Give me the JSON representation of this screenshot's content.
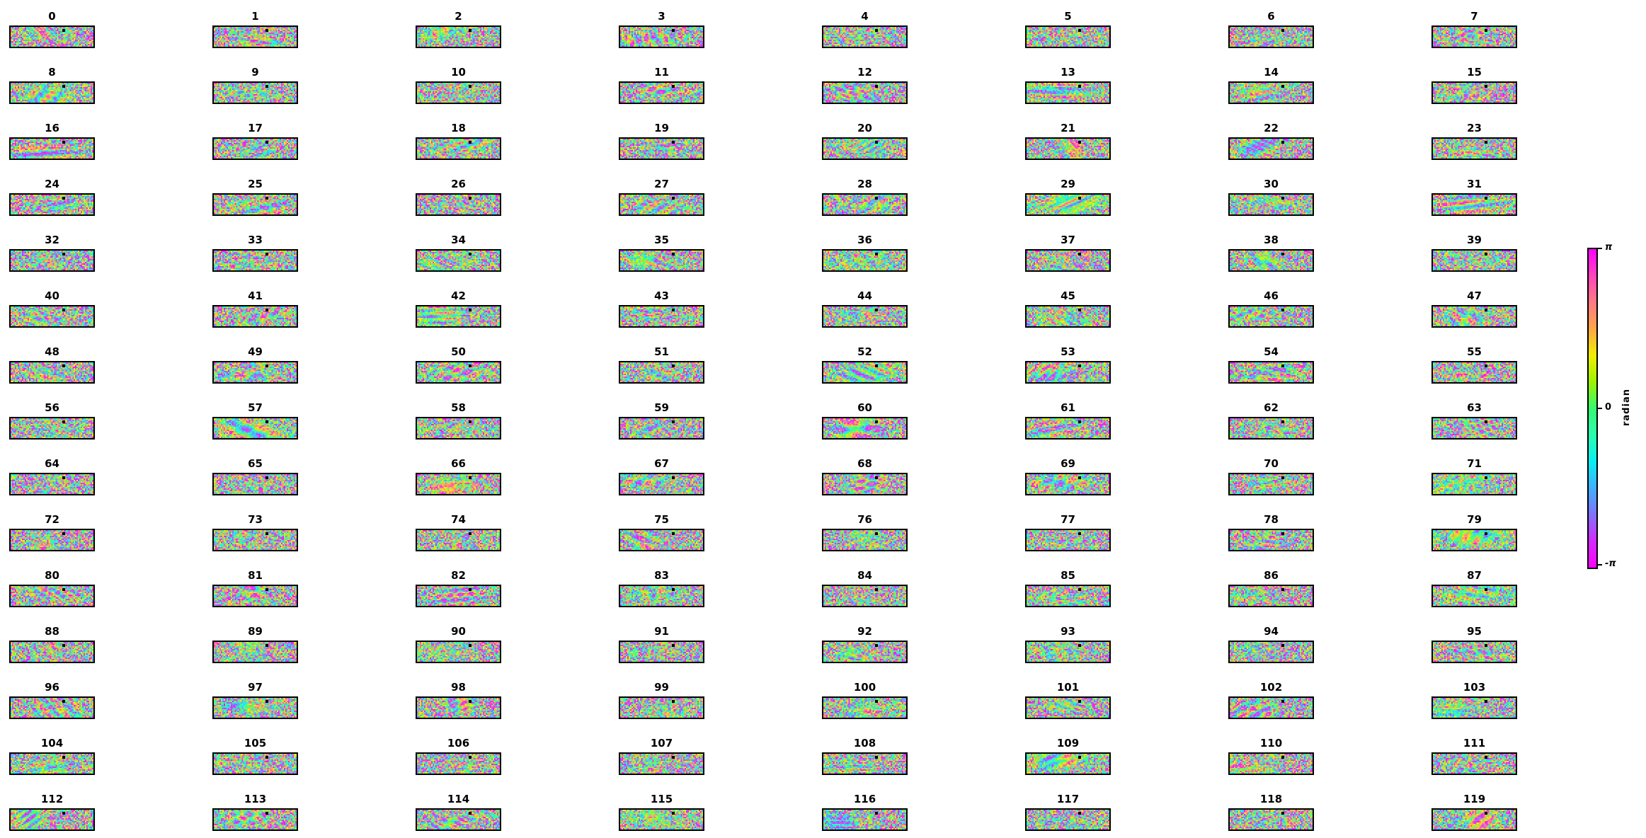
{
  "page": {
    "background": "#ffffff"
  },
  "figure": {
    "marker": {
      "color": "#000000",
      "rel_x": 0.62,
      "rel_y": 0.12
    },
    "colorbar": {
      "label": "radian",
      "ticks": [
        {
          "label": "π",
          "pos": 0.0
        },
        {
          "label": "0",
          "pos": 0.5
        },
        {
          "label": "-π",
          "pos": 1.0
        }
      ],
      "gradient_stops": [
        "#ff00ff",
        "#ff44bb",
        "#ff7a85",
        "#ffa647",
        "#f2ee00",
        "#9ef300",
        "#34fa70",
        "#2cfcaf",
        "#06f0f2",
        "#3fb0ff",
        "#8172fa",
        "#d32bff",
        "#ff00ff"
      ],
      "border_color": "#000000"
    }
  },
  "chart_data": {
    "type": "heatmap",
    "subtype": "grid of wrapped-phase (interferogram-like) noise images",
    "title": "",
    "layout": {
      "rows": 15,
      "cols": 8,
      "colorbar_position": "right",
      "grid": "off"
    },
    "panel_titles": [
      "0",
      "1",
      "2",
      "3",
      "4",
      "5",
      "6",
      "7",
      "8",
      "9",
      "10",
      "11",
      "12",
      "13",
      "14",
      "15",
      "16",
      "17",
      "18",
      "19",
      "20",
      "21",
      "22",
      "23",
      "24",
      "25",
      "26",
      "27",
      "28",
      "29",
      "30",
      "31",
      "32",
      "33",
      "34",
      "35",
      "36",
      "37",
      "38",
      "39",
      "40",
      "41",
      "42",
      "43",
      "44",
      "45",
      "46",
      "47",
      "48",
      "49",
      "50",
      "51",
      "52",
      "53",
      "54",
      "55",
      "56",
      "57",
      "58",
      "59",
      "60",
      "61",
      "62",
      "63",
      "64",
      "65",
      "66",
      "67",
      "68",
      "69",
      "70",
      "71",
      "72",
      "73",
      "74",
      "75",
      "76",
      "77",
      "78",
      "79",
      "80",
      "81",
      "82",
      "83",
      "84",
      "85",
      "86",
      "87",
      "88",
      "89",
      "90",
      "91",
      "92",
      "93",
      "94",
      "95",
      "96",
      "97",
      "98",
      "99",
      "100",
      "101",
      "102",
      "103",
      "104",
      "105",
      "106",
      "107",
      "108",
      "109",
      "110",
      "111",
      "112",
      "113",
      "114",
      "115",
      "116",
      "117",
      "118",
      "119"
    ],
    "value_axis": {
      "label": "radian",
      "tick_labels": [
        "π",
        "0",
        "-π"
      ],
      "range": [
        -3.14159265,
        3.14159265
      ]
    },
    "colormap": "cyclic hsv-like: magenta → salmon → orange → yellow → green → spring green → cyan → azure → violet → magenta",
    "panel_content": "each panel is a speckled wrapped-phase image (values -π..π) with smooth coherent fringe blobs over strong random noise",
    "marker_note": "small black reference-pixel marker near top-center of every panel"
  }
}
